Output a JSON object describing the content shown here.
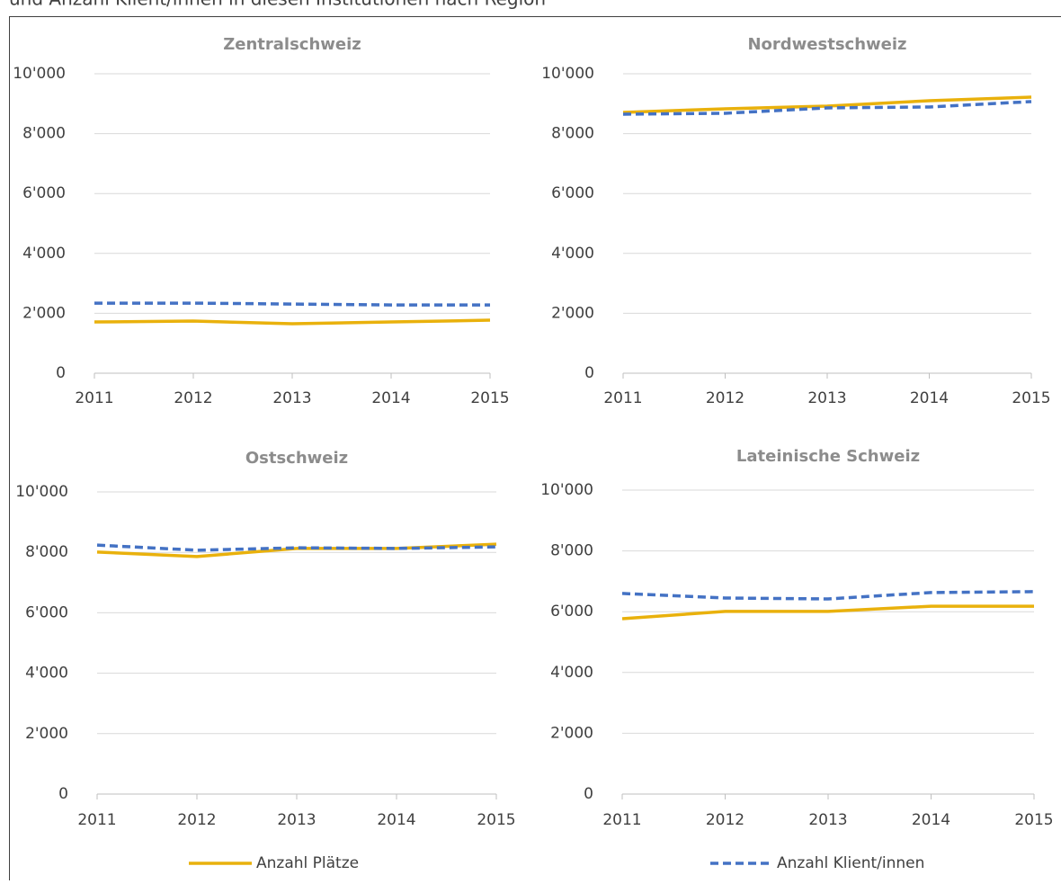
{
  "caption": "und Anzahl Klient/innen in diesen Institutionen nach Region",
  "chart_data": [
    {
      "type": "line",
      "title": "Zentralschweiz",
      "categories": [
        "2011",
        "2012",
        "2013",
        "2014",
        "2015"
      ],
      "series": [
        {
          "name": "Anzahl Plätze",
          "color": "#e9b10c",
          "values": [
            1710,
            1740,
            1650,
            1710,
            1770
          ]
        },
        {
          "name": "Anzahl Klient/innen",
          "color": "#4472c4",
          "dashed": true,
          "values": [
            2340,
            2340,
            2310,
            2280,
            2280
          ]
        }
      ],
      "ylim": [
        0,
        10000
      ],
      "yticks": [
        0,
        {
          "value": 2000,
          "label": "2'000"
        },
        {
          "value": 4000,
          "label": "4'000"
        },
        {
          "value": 6000,
          "label": "6'000"
        },
        {
          "value": 8000,
          "label": "8'000"
        },
        {
          "value": 10000,
          "label": "10'000"
        }
      ],
      "grid": true
    },
    {
      "type": "line",
      "title": "Nordwestschweiz",
      "categories": [
        "2011",
        "2012",
        "2013",
        "2014",
        "2015"
      ],
      "series": [
        {
          "name": "Anzahl Plätze",
          "color": "#e9b10c",
          "values": [
            8710,
            8830,
            8920,
            9100,
            9220
          ]
        },
        {
          "name": "Anzahl Klient/innen",
          "color": "#4472c4",
          "dashed": true,
          "values": [
            8650,
            8680,
            8860,
            8890,
            9070
          ]
        }
      ],
      "ylim": [
        0,
        10000
      ],
      "yticks": [
        0,
        {
          "value": 2000,
          "label": "2'000"
        },
        {
          "value": 4000,
          "label": "4'000"
        },
        {
          "value": 6000,
          "label": "6'000"
        },
        {
          "value": 8000,
          "label": "8'000"
        },
        {
          "value": 10000,
          "label": "10'000"
        }
      ],
      "grid": true
    },
    {
      "type": "line",
      "title": "Ostschweiz",
      "categories": [
        "2011",
        "2012",
        "2013",
        "2014",
        "2015"
      ],
      "series": [
        {
          "name": "Anzahl Plätze",
          "color": "#e9b10c",
          "values": [
            8010,
            7860,
            8130,
            8130,
            8270
          ]
        },
        {
          "name": "Anzahl Klient/innen",
          "color": "#4472c4",
          "dashed": true,
          "values": [
            8240,
            8070,
            8150,
            8130,
            8180
          ]
        }
      ],
      "ylim": [
        0,
        10000
      ],
      "yticks": [
        0,
        {
          "value": 2000,
          "label": "2'000"
        },
        {
          "value": 4000,
          "label": "4'000"
        },
        {
          "value": 6000,
          "label": "6'000"
        },
        {
          "value": 8000,
          "label": "8'000"
        },
        {
          "value": 10000,
          "label": "10'000"
        }
      ],
      "grid": true
    },
    {
      "type": "line",
      "title": "Lateinische Schweiz",
      "categories": [
        "2011",
        "2012",
        "2013",
        "2014",
        "2015"
      ],
      "series": [
        {
          "name": "Anzahl Plätze",
          "color": "#e9b10c",
          "values": [
            5770,
            6010,
            6010,
            6180,
            6180
          ]
        },
        {
          "name": "Anzahl Klient/innen",
          "color": "#4472c4",
          "dashed": true,
          "values": [
            6600,
            6450,
            6420,
            6630,
            6660
          ]
        }
      ],
      "ylim": [
        0,
        10000
      ],
      "yticks": [
        0,
        {
          "value": 2000,
          "label": "2'000"
        },
        {
          "value": 4000,
          "label": "4'000"
        },
        {
          "value": 6000,
          "label": "6'000"
        },
        {
          "value": 8000,
          "label": "8'000"
        },
        {
          "value": 10000,
          "label": "10'000"
        }
      ],
      "grid": true
    }
  ]
}
